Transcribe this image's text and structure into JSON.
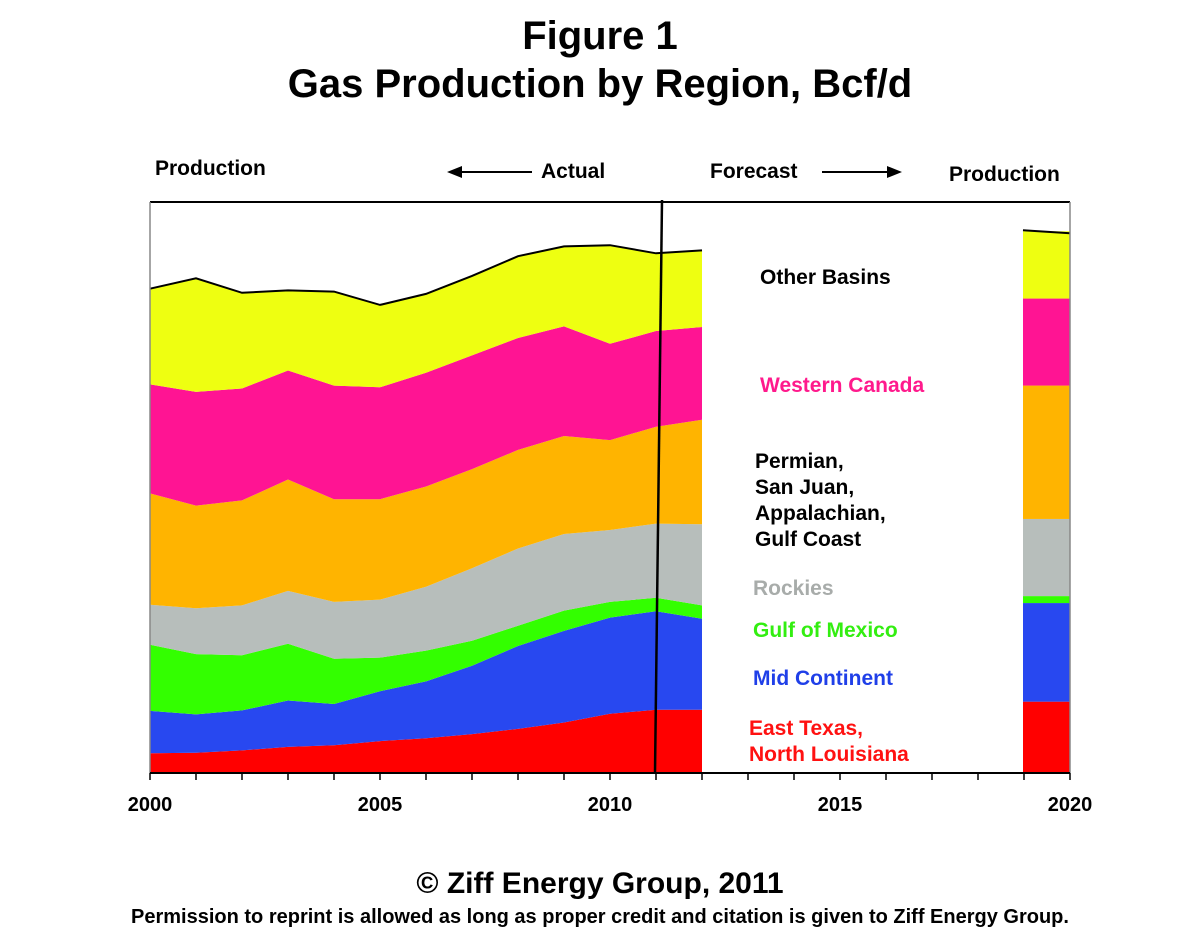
{
  "header": {
    "title_line1": "Figure 1",
    "title_line2": "Gas Production by Region, Bcf/d",
    "left_label": "Production",
    "actual_label": "Actual",
    "forecast_label": "Forecast",
    "right_label": "Production"
  },
  "footer": {
    "copyright": "© Ziff Energy Group, 2011",
    "permission": "Permission to reprint is allowed as long as proper credit and citation is given to Ziff Energy Group."
  },
  "legend": [
    {
      "lines": [
        "Other Basins"
      ],
      "color": "#000000"
    },
    {
      "lines": [
        "Western Canada"
      ],
      "color": "#ff1a8c"
    },
    {
      "lines": [
        "Permian,",
        "San Juan,",
        "Appalachian,",
        "Gulf Coast"
      ],
      "color": "#000000"
    },
    {
      "lines": [
        "Rockies"
      ],
      "color": "#a8acaa"
    },
    {
      "lines": [
        "Gulf of Mexico"
      ],
      "color": "#33ee11"
    },
    {
      "lines": [
        "Mid Continent"
      ],
      "color": "#1f3fe8"
    },
    {
      "lines": [
        "East Texas,",
        "North Louisiana"
      ],
      "color": "#ff1111"
    }
  ],
  "chart_data": {
    "type": "area",
    "stacked": true,
    "title": "Gas Production by Region, Bcf/d",
    "x": [
      2000,
      2001,
      2002,
      2003,
      2004,
      2005,
      2006,
      2007,
      2008,
      2009,
      2010,
      2011,
      2012
    ],
    "xlim": [
      2000,
      2020
    ],
    "xticks": [
      2000,
      2005,
      2010,
      2015,
      2020
    ],
    "ylim": [
      0,
      100
    ],
    "forecast_start": 2011,
    "series": [
      {
        "name": "East Texas, North Louisiana",
        "color": "#ff0000",
        "values": [
          3.4,
          3.5,
          3.9,
          4.5,
          4.8,
          5.5,
          6.0,
          6.7,
          7.6,
          8.7,
          10.2,
          10.9,
          10.9
        ],
        "value_2020": 12.3
      },
      {
        "name": "Mid Continent",
        "color": "#2848f0",
        "values": [
          7.3,
          6.6,
          6.9,
          8.0,
          7.1,
          8.6,
          9.8,
          11.8,
          14.3,
          15.8,
          16.6,
          17.0,
          15.7
        ],
        "value_2020": 17.0
      },
      {
        "name": "Gulf of Mexico",
        "color": "#33ff00",
        "values": [
          11.4,
          10.4,
          9.5,
          9.8,
          7.8,
          5.8,
          5.3,
          4.3,
          3.5,
          3.5,
          2.7,
          2.3,
          2.3
        ],
        "value_2020": 1.2
      },
      {
        "name": "Rockies",
        "color": "#b7bebb",
        "values": [
          6.9,
          7.9,
          8.6,
          9.1,
          9.8,
          10.0,
          11.0,
          12.5,
          13.3,
          13.2,
          12.4,
          12.8,
          14.0
        ],
        "value_2020": 13.3
      },
      {
        "name": "Permian, San Juan, Appalachian, Gulf Coast",
        "color": "#ffb400",
        "values": [
          19.2,
          17.7,
          18.1,
          19.2,
          17.7,
          17.3,
          17.3,
          17.1,
          17.0,
          16.9,
          15.5,
          16.7,
          18.0
        ],
        "value_2020": 23.0
      },
      {
        "name": "Western Canada",
        "color": "#ff1493",
        "values": [
          18.8,
          19.6,
          19.3,
          18.8,
          19.6,
          19.3,
          19.6,
          19.6,
          19.3,
          18.9,
          16.6,
          16.5,
          16.0
        ],
        "value_2020": 15.0
      },
      {
        "name": "Other Basins",
        "color": "#eeff11",
        "values": [
          16.5,
          19.6,
          16.5,
          13.8,
          16.2,
          14.2,
          13.6,
          13.7,
          14.1,
          13.8,
          17.0,
          13.4,
          13.2
        ],
        "value_2020": 11.6
      }
    ]
  }
}
